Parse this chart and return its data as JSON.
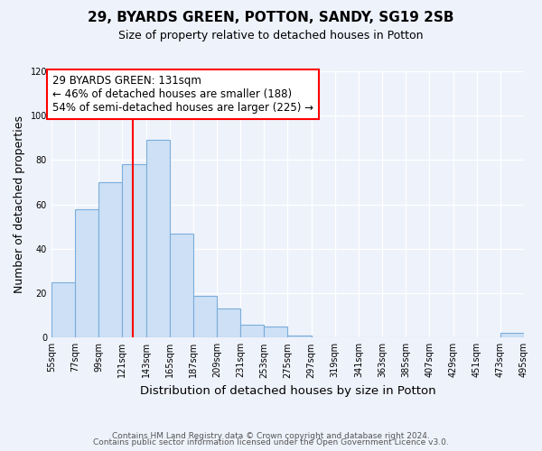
{
  "title": "29, BYARDS GREEN, POTTON, SANDY, SG19 2SB",
  "subtitle": "Size of property relative to detached houses in Potton",
  "xlabel": "Distribution of detached houses by size in Potton",
  "ylabel": "Number of detached properties",
  "bar_color": "#cde0f5",
  "bar_edge_color": "#7aaddb",
  "background_color": "#eef2fb",
  "plot_bg_color": "#eef2fb",
  "bin_edges": [
    55,
    77,
    99,
    121,
    143,
    165,
    187,
    209,
    231,
    253,
    275,
    297,
    319,
    341,
    363,
    385,
    407,
    429,
    451,
    473,
    495
  ],
  "bar_heights": [
    25,
    58,
    70,
    78,
    89,
    47,
    19,
    13,
    6,
    5,
    1,
    0,
    0,
    0,
    0,
    0,
    0,
    0,
    0,
    2
  ],
  "tick_labels": [
    "55sqm",
    "77sqm",
    "99sqm",
    "121sqm",
    "143sqm",
    "165sqm",
    "187sqm",
    "209sqm",
    "231sqm",
    "253sqm",
    "275sqm",
    "297sqm",
    "319sqm",
    "341sqm",
    "363sqm",
    "385sqm",
    "407sqm",
    "429sqm",
    "451sqm",
    "473sqm",
    "495sqm"
  ],
  "vline_x": 131,
  "vline_color": "red",
  "ylim": [
    0,
    120
  ],
  "yticks": [
    0,
    20,
    40,
    60,
    80,
    100,
    120
  ],
  "annotation_title": "29 BYARDS GREEN: 131sqm",
  "annotation_line1": "← 46% of detached houses are smaller (188)",
  "annotation_line2": "54% of semi-detached houses are larger (225) →",
  "annotation_box_color": "#ffffff",
  "annotation_box_edge": "red",
  "footer1": "Contains HM Land Registry data © Crown copyright and database right 2024.",
  "footer2": "Contains public sector information licensed under the Open Government Licence v3.0."
}
